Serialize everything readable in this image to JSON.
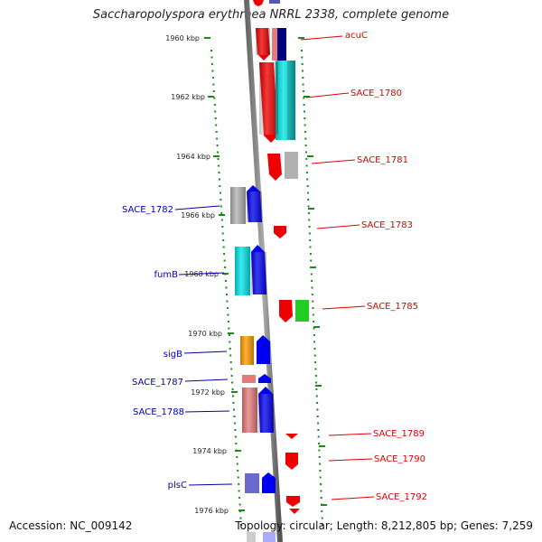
{
  "title": "Saccharopolyspora erythraea NRRL 2338, complete genome",
  "footer": {
    "accession": "Accession: NC_009142",
    "topology": "Topology: circular; Length: 8,212,805 bp; Genes: 7,259"
  },
  "ticks": [
    "1960 kbp",
    "1962 kbp",
    "1964 kbp",
    "1966 kbp",
    "1968 kbp",
    "1970 kbp",
    "1972 kbp",
    "1974 kbp",
    "1976 kbp"
  ],
  "forward_labels": [
    "acuC",
    "SACE_1780",
    "SACE_1781",
    "SACE_1783",
    "SACE_1785",
    "SACE_1789",
    "SACE_1790",
    "SACE_1792"
  ],
  "reverse_labels": [
    "SACE_1782",
    "fumB",
    "sigB",
    "SACE_1787",
    "SACE_1788",
    "plsC"
  ],
  "colors": {
    "forward_label": "#dd0000",
    "reverse_label": "#0000aa",
    "tick_green": "#1a8a1a",
    "red_gene": "#ee0000",
    "blue_gene": "#0000ee",
    "cyan_gene": "#00e5e5",
    "gray_gene": "#b0b0b0",
    "orange_gene": "#ff9900",
    "green_gene": "#22cc22",
    "pink_gene": "#e57a7a",
    "slate_gene": "#6a6acc"
  }
}
